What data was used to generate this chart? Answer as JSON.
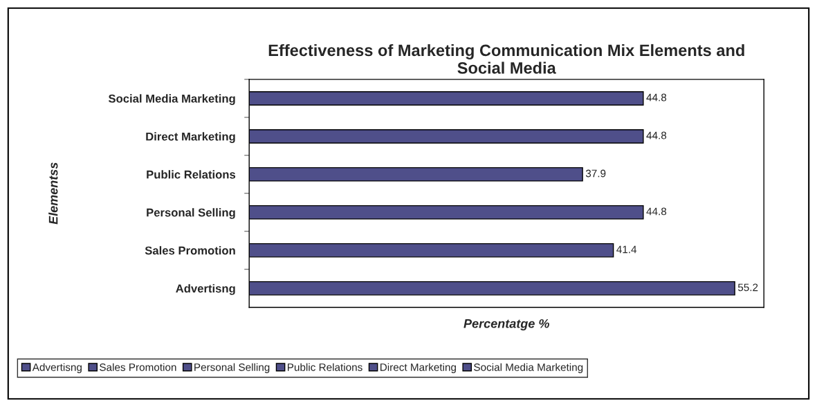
{
  "chart_data": {
    "type": "bar",
    "orientation": "horizontal",
    "title": "Effectiveness of Marketing Communication Mix Elements and\nSocial Media",
    "xlabel": "Percentatge %",
    "ylabel": "Elementss",
    "categories": [
      "Social Media Marketing",
      "Direct Marketing",
      "Public Relations",
      "Personal Selling",
      "Sales Promotion",
      "Advertisng"
    ],
    "series": [
      {
        "name": "Advertisng",
        "color": "#4f4f8a",
        "values": [
          null,
          null,
          null,
          null,
          null,
          55.2
        ]
      },
      {
        "name": "Sales Promotion",
        "color": "#4f4f8a",
        "values": [
          null,
          null,
          null,
          null,
          41.4,
          null
        ]
      },
      {
        "name": "Personal Selling",
        "color": "#4f4f8a",
        "values": [
          null,
          null,
          null,
          44.8,
          null,
          null
        ]
      },
      {
        "name": "Public Relations",
        "color": "#4f4f8a",
        "values": [
          null,
          null,
          37.9,
          null,
          null,
          null
        ]
      },
      {
        "name": "Direct Marketing",
        "color": "#4f4f8a",
        "values": [
          null,
          44.8,
          null,
          null,
          null,
          null
        ]
      },
      {
        "name": "Social Media Marketing",
        "color": "#4f4f8a",
        "values": [
          44.8,
          null,
          null,
          null,
          null,
          null
        ]
      }
    ],
    "data_labels": true,
    "tick_labels": "y",
    "grid": false,
    "legend": "bottom"
  }
}
